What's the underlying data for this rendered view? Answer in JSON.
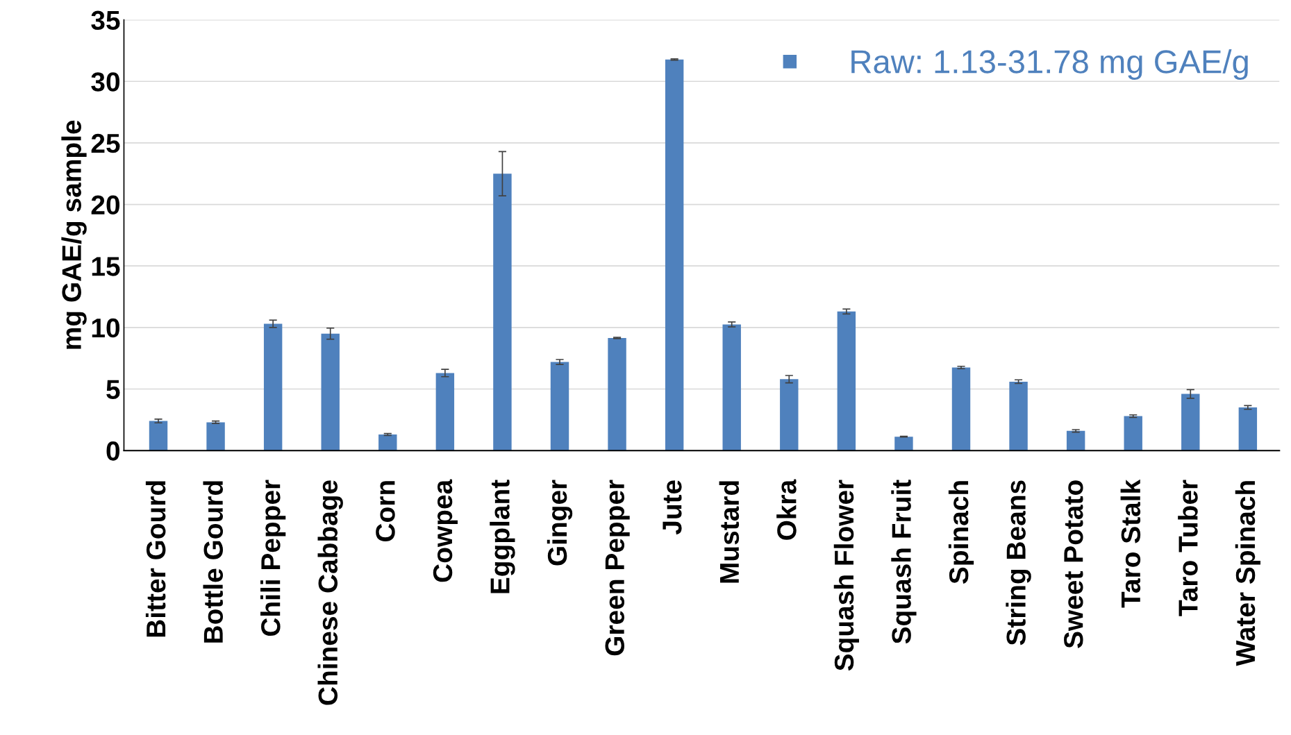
{
  "chart_data": {
    "type": "bar",
    "ylabel": "mg GAE/g sample",
    "categories": [
      "Bitter Gourd",
      "Bottle Gourd",
      "Chili Pepper",
      "Chinese Cabbage",
      "Corn",
      "Cowpea",
      "Eggplant",
      "Ginger",
      "Green Pepper",
      "Jute",
      "Mustard",
      "Okra",
      "Squash Flower",
      "Squash Fruit",
      "Spinach",
      "String Beans",
      "Sweet Potato",
      "Taro Stalk",
      "Taro Tuber",
      "Water Spinach"
    ],
    "series": [
      {
        "name": "Raw: 1.13-31.78 mg GAE/g",
        "color": "#4f81bd",
        "values": [
          2.4,
          2.3,
          10.3,
          9.5,
          1.3,
          6.3,
          22.5,
          7.2,
          9.15,
          31.78,
          10.25,
          5.8,
          11.3,
          1.13,
          6.75,
          5.6,
          1.6,
          2.8,
          4.6,
          3.5
        ],
        "errors": [
          0.15,
          0.1,
          0.3,
          0.45,
          0.08,
          0.3,
          1.8,
          0.2,
          0.05,
          0.05,
          0.2,
          0.3,
          0.2,
          0.03,
          0.1,
          0.15,
          0.1,
          0.1,
          0.35,
          0.15
        ]
      }
    ],
    "ylim": [
      0,
      35
    ],
    "yticks": [
      0,
      5,
      10,
      15,
      20,
      25,
      30,
      35
    ],
    "grid": "y",
    "legend": "top right"
  }
}
